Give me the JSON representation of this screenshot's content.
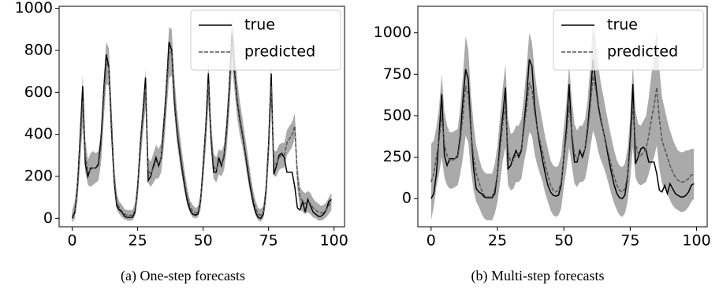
{
  "chart_data": [
    {
      "type": "line",
      "title": "(a) One-step forecasts",
      "x": [
        0,
        1,
        2,
        3,
        4,
        5,
        6,
        7,
        8,
        9,
        10,
        11,
        12,
        13,
        14,
        15,
        16,
        17,
        18,
        19,
        20,
        21,
        22,
        23,
        24,
        25,
        26,
        27,
        28,
        29,
        30,
        31,
        32,
        33,
        34,
        35,
        36,
        37,
        38,
        39,
        40,
        41,
        42,
        43,
        44,
        45,
        46,
        47,
        48,
        49,
        50,
        51,
        52,
        53,
        54,
        55,
        56,
        57,
        58,
        59,
        60,
        61,
        62,
        63,
        64,
        65,
        66,
        67,
        68,
        69,
        70,
        71,
        72,
        73,
        74,
        75,
        76,
        77,
        78,
        79,
        80,
        81,
        82,
        83,
        84,
        85,
        86,
        87,
        88,
        89,
        90,
        91,
        92,
        93,
        94,
        95,
        96,
        97,
        98,
        99
      ],
      "xlim": [
        -5,
        104
      ],
      "xticks": [
        0,
        25,
        50,
        75,
        100
      ],
      "ylim": [
        -40,
        1010
      ],
      "yticks": [
        0,
        200,
        400,
        600,
        800,
        1000
      ],
      "legend": "upper right",
      "band": {
        "color": "#aaaaaa",
        "halfwidth": [
          30,
          40,
          60,
          90,
          120,
          80,
          60,
          80,
          80,
          70,
          70,
          80,
          100,
          100,
          90,
          80,
          60,
          40,
          30,
          30,
          25,
          25,
          25,
          25,
          30,
          50,
          70,
          80,
          90,
          60,
          60,
          70,
          80,
          70,
          70,
          80,
          100,
          120,
          110,
          90,
          80,
          70,
          60,
          50,
          40,
          30,
          30,
          25,
          25,
          40,
          60,
          80,
          100,
          70,
          60,
          60,
          60,
          60,
          60,
          80,
          100,
          120,
          110,
          90,
          80,
          70,
          60,
          60,
          50,
          40,
          35,
          30,
          30,
          30,
          50,
          70,
          90,
          60,
          60,
          60,
          60,
          60,
          60,
          60,
          60,
          60,
          60,
          50,
          50,
          50,
          50,
          50,
          45,
          40,
          40,
          35,
          35,
          35,
          40,
          40
        ]
      },
      "series": [
        {
          "name": "true",
          "color": "#000000",
          "style": "solid",
          "values": [
            0,
            30,
            150,
            380,
            630,
            260,
            200,
            240,
            240,
            240,
            260,
            380,
            600,
            780,
            720,
            420,
            180,
            60,
            40,
            30,
            10,
            5,
            5,
            5,
            30,
            150,
            350,
            500,
            670,
            180,
            200,
            250,
            290,
            250,
            290,
            450,
            620,
            840,
            800,
            560,
            420,
            320,
            230,
            150,
            80,
            40,
            20,
            15,
            20,
            80,
            250,
            430,
            690,
            380,
            220,
            220,
            290,
            250,
            300,
            430,
            620,
            880,
            700,
            560,
            470,
            400,
            320,
            230,
            150,
            80,
            30,
            5,
            0,
            20,
            130,
            350,
            690,
            210,
            250,
            300,
            310,
            290,
            220,
            220,
            220,
            150,
            50,
            40,
            80,
            30,
            90,
            60,
            30,
            20,
            10,
            10,
            20,
            40,
            80,
            90
          ]
        },
        {
          "name": "predicted",
          "color": "#555555",
          "style": "dashed",
          "values": [
            10,
            40,
            140,
            350,
            560,
            300,
            220,
            230,
            240,
            240,
            250,
            340,
            560,
            740,
            720,
            460,
            200,
            80,
            50,
            35,
            20,
            15,
            15,
            15,
            40,
            140,
            330,
            480,
            620,
            230,
            210,
            240,
            270,
            260,
            290,
            420,
            600,
            790,
            790,
            590,
            440,
            340,
            250,
            170,
            100,
            55,
            35,
            25,
            30,
            80,
            230,
            410,
            640,
            400,
            250,
            230,
            270,
            260,
            290,
            410,
            600,
            840,
            720,
            570,
            480,
            410,
            330,
            250,
            170,
            100,
            50,
            20,
            15,
            30,
            120,
            330,
            630,
            260,
            260,
            290,
            300,
            300,
            360,
            380,
            400,
            440,
            200,
            100,
            80,
            70,
            80,
            70,
            50,
            40,
            30,
            25,
            30,
            40,
            60,
            80
          ]
        }
      ]
    },
    {
      "type": "line",
      "title": "(b) Multi-step forecasts",
      "x": [
        0,
        1,
        2,
        3,
        4,
        5,
        6,
        7,
        8,
        9,
        10,
        11,
        12,
        13,
        14,
        15,
        16,
        17,
        18,
        19,
        20,
        21,
        22,
        23,
        24,
        25,
        26,
        27,
        28,
        29,
        30,
        31,
        32,
        33,
        34,
        35,
        36,
        37,
        38,
        39,
        40,
        41,
        42,
        43,
        44,
        45,
        46,
        47,
        48,
        49,
        50,
        51,
        52,
        53,
        54,
        55,
        56,
        57,
        58,
        59,
        60,
        61,
        62,
        63,
        64,
        65,
        66,
        67,
        68,
        69,
        70,
        71,
        72,
        73,
        74,
        75,
        76,
        77,
        78,
        79,
        80,
        81,
        82,
        83,
        84,
        85,
        86,
        87,
        88,
        89,
        90,
        91,
        92,
        93,
        94,
        95,
        96,
        97,
        98,
        99
      ],
      "xlim": [
        -5,
        104
      ],
      "xticks": [
        0,
        25,
        50,
        75,
        100
      ],
      "ylim": [
        -170,
        1160
      ],
      "yticks": [
        0,
        250,
        500,
        750,
        1000
      ],
      "legend": "upper right",
      "band": {
        "color": "#aaaaaa",
        "halfwidth": [
          230,
          200,
          180,
          200,
          250,
          200,
          180,
          170,
          170,
          170,
          170,
          200,
          250,
          300,
          280,
          230,
          200,
          170,
          150,
          140,
          140,
          140,
          140,
          140,
          150,
          170,
          200,
          220,
          250,
          200,
          170,
          170,
          170,
          170,
          180,
          200,
          250,
          300,
          280,
          250,
          220,
          200,
          180,
          170,
          160,
          150,
          150,
          150,
          150,
          160,
          180,
          200,
          250,
          200,
          180,
          170,
          170,
          170,
          180,
          200,
          250,
          330,
          300,
          260,
          230,
          210,
          190,
          180,
          170,
          160,
          150,
          150,
          150,
          150,
          160,
          180,
          250,
          200,
          180,
          180,
          190,
          200,
          230,
          270,
          310,
          350,
          300,
          260,
          240,
          220,
          210,
          200,
          190,
          180,
          180,
          180,
          180,
          170,
          160,
          150
        ]
      },
      "series": [
        {
          "name": "true",
          "color": "#000000",
          "style": "solid",
          "values": [
            0,
            30,
            150,
            380,
            630,
            260,
            200,
            240,
            240,
            240,
            260,
            380,
            600,
            780,
            720,
            420,
            180,
            60,
            40,
            30,
            10,
            5,
            5,
            5,
            30,
            150,
            350,
            500,
            670,
            180,
            200,
            250,
            290,
            250,
            290,
            450,
            620,
            840,
            800,
            560,
            420,
            320,
            230,
            150,
            80,
            40,
            20,
            15,
            20,
            80,
            250,
            430,
            690,
            380,
            220,
            220,
            290,
            250,
            300,
            430,
            620,
            840,
            700,
            560,
            470,
            400,
            320,
            230,
            150,
            80,
            30,
            5,
            0,
            20,
            130,
            350,
            690,
            210,
            250,
            300,
            310,
            290,
            220,
            220,
            220,
            150,
            50,
            40,
            80,
            30,
            90,
            60,
            30,
            20,
            10,
            10,
            20,
            40,
            80,
            90
          ]
        },
        {
          "name": "predicted",
          "color": "#555555",
          "style": "dashed",
          "values": [
            100,
            150,
            250,
            350,
            500,
            330,
            260,
            230,
            230,
            240,
            250,
            350,
            500,
            680,
            620,
            400,
            250,
            150,
            100,
            50,
            20,
            10,
            10,
            10,
            60,
            150,
            300,
            450,
            560,
            280,
            220,
            230,
            270,
            270,
            300,
            420,
            550,
            700,
            660,
            520,
            420,
            350,
            280,
            200,
            140,
            80,
            50,
            40,
            50,
            100,
            250,
            380,
            560,
            400,
            270,
            240,
            270,
            270,
            300,
            400,
            560,
            740,
            660,
            540,
            460,
            400,
            330,
            260,
            190,
            130,
            80,
            50,
            40,
            60,
            140,
            300,
            560,
            330,
            270,
            260,
            280,
            300,
            380,
            480,
            560,
            670,
            480,
            350,
            300,
            250,
            200,
            160,
            130,
            110,
            100,
            100,
            110,
            120,
            140,
            150
          ]
        }
      ]
    }
  ]
}
